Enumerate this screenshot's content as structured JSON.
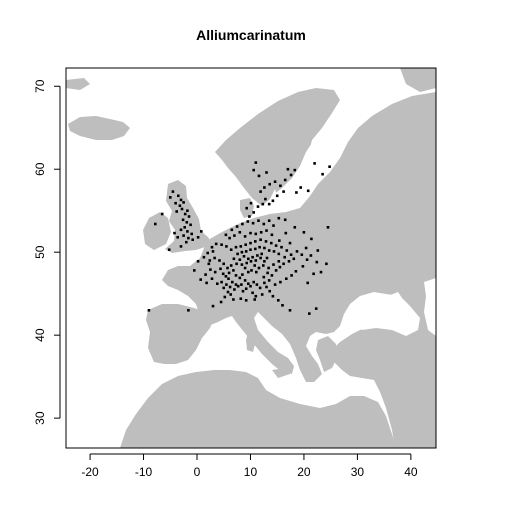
{
  "chart_data": {
    "type": "scatter",
    "title": "Alliumcarinatum",
    "xlabel": "",
    "ylabel": "",
    "xlim": [
      -24.5,
      44.7
    ],
    "ylim": [
      26.4,
      72.2
    ],
    "x_ticks": [
      "-20",
      "-10",
      "0",
      "10",
      "20",
      "30",
      "40"
    ],
    "y_ticks": [
      "30",
      "40",
      "50",
      "60",
      "70"
    ],
    "land_color": "#bebebe",
    "sea_color": "#ffffff",
    "point_color": "#000000",
    "grid": false,
    "series": [
      {
        "points": [
          [
            -3.5,
            56.8
          ],
          [
            -3.0,
            56.3
          ],
          [
            -2.5,
            56.0
          ],
          [
            -3.2,
            55.6
          ],
          [
            -2.8,
            55.2
          ],
          [
            -1.8,
            55.0
          ],
          [
            -2.2,
            54.6
          ],
          [
            -1.5,
            54.3
          ],
          [
            -2.6,
            53.9
          ],
          [
            -1.9,
            53.6
          ],
          [
            -1.2,
            53.3
          ],
          [
            -2.3,
            53.0
          ],
          [
            -3.0,
            52.7
          ],
          [
            -1.8,
            52.5
          ],
          [
            -1.0,
            52.2
          ],
          [
            -2.5,
            52.0
          ],
          [
            -1.6,
            51.7
          ],
          [
            -0.8,
            51.5
          ],
          [
            -3.6,
            51.8
          ],
          [
            -4.2,
            52.3
          ],
          [
            -4.5,
            57.3
          ],
          [
            -5.0,
            56.6
          ],
          [
            -6.5,
            54.6
          ],
          [
            -7.8,
            53.4
          ],
          [
            -4.0,
            55.9
          ],
          [
            -3.8,
            54.9
          ],
          [
            -5.2,
            50.3
          ],
          [
            -3.0,
            50.7
          ],
          [
            -2.0,
            51.2
          ],
          [
            0.2,
            51.8
          ],
          [
            0.8,
            52.5
          ],
          [
            -1.6,
            43.0
          ],
          [
            -9.0,
            43.0
          ],
          [
            3.0,
            43.5
          ],
          [
            4.5,
            44.0
          ],
          [
            5.2,
            44.6
          ],
          [
            5.8,
            45.2
          ],
          [
            6.2,
            45.8
          ],
          [
            5.5,
            46.1
          ],
          [
            6.6,
            46.4
          ],
          [
            5.9,
            46.8
          ],
          [
            7.0,
            45.5
          ],
          [
            6.3,
            44.9
          ],
          [
            5.0,
            45.7
          ],
          [
            4.6,
            46.4
          ],
          [
            6.8,
            44.3
          ],
          [
            7.3,
            46.1
          ],
          [
            5.4,
            47.1
          ],
          [
            6.0,
            47.5
          ],
          [
            6.8,
            47.8
          ],
          [
            7.3,
            47.2
          ],
          [
            8.0,
            46.9
          ],
          [
            8.5,
            47.3
          ],
          [
            9.0,
            46.6
          ],
          [
            8.3,
            46.1
          ],
          [
            7.7,
            45.9
          ],
          [
            9.6,
            46.2
          ],
          [
            9.2,
            45.6
          ],
          [
            8.6,
            45.3
          ],
          [
            10.0,
            45.9
          ],
          [
            10.6,
            46.4
          ],
          [
            11.2,
            46.1
          ],
          [
            11.8,
            45.7
          ],
          [
            10.4,
            45.1
          ],
          [
            11.0,
            44.7
          ],
          [
            8.2,
            44.4
          ],
          [
            9.2,
            44.2
          ],
          [
            10.8,
            44.3
          ],
          [
            12.2,
            44.9
          ],
          [
            13.0,
            45.8
          ],
          [
            13.6,
            45.3
          ],
          [
            14.2,
            44.7
          ],
          [
            15.2,
            44.2
          ],
          [
            16.0,
            43.6
          ],
          [
            17.4,
            43.0
          ],
          [
            12.5,
            47.0
          ],
          [
            13.2,
            47.5
          ],
          [
            14.0,
            47.2
          ],
          [
            14.8,
            47.8
          ],
          [
            15.5,
            48.2
          ],
          [
            16.2,
            48.6
          ],
          [
            15.3,
            48.9
          ],
          [
            14.3,
            48.5
          ],
          [
            13.4,
            48.1
          ],
          [
            12.4,
            48.4
          ],
          [
            11.6,
            48.1
          ],
          [
            10.8,
            48.4
          ],
          [
            10.2,
            47.8
          ],
          [
            11.1,
            47.6
          ],
          [
            9.6,
            47.6
          ],
          [
            9.0,
            48.1
          ],
          [
            8.4,
            48.5
          ],
          [
            9.3,
            48.7
          ],
          [
            10.1,
            48.9
          ],
          [
            11.0,
            49.0
          ],
          [
            11.9,
            49.3
          ],
          [
            12.6,
            48.9
          ],
          [
            13.1,
            49.3
          ],
          [
            12.1,
            49.8
          ],
          [
            11.3,
            49.6
          ],
          [
            10.4,
            49.4
          ],
          [
            9.6,
            49.2
          ],
          [
            8.8,
            49.5
          ],
          [
            8.0,
            49.1
          ],
          [
            7.4,
            48.6
          ],
          [
            6.9,
            49.2
          ],
          [
            7.6,
            49.8
          ],
          [
            8.4,
            50.0
          ],
          [
            9.2,
            50.1
          ],
          [
            10.0,
            50.3
          ],
          [
            10.9,
            50.4
          ],
          [
            11.7,
            50.6
          ],
          [
            12.6,
            50.5
          ],
          [
            13.5,
            50.2
          ],
          [
            14.4,
            50.1
          ],
          [
            15.3,
            49.8
          ],
          [
            16.4,
            49.4
          ],
          [
            17.2,
            48.9
          ],
          [
            18.1,
            49.2
          ],
          [
            17.6,
            49.7
          ],
          [
            16.8,
            50.2
          ],
          [
            15.8,
            50.6
          ],
          [
            14.8,
            50.8
          ],
          [
            13.9,
            51.1
          ],
          [
            12.9,
            51.3
          ],
          [
            11.9,
            51.5
          ],
          [
            10.9,
            51.3
          ],
          [
            10.0,
            51.1
          ],
          [
            9.1,
            50.9
          ],
          [
            8.2,
            50.7
          ],
          [
            7.3,
            50.6
          ],
          [
            6.4,
            50.3
          ],
          [
            5.5,
            50.7
          ],
          [
            4.6,
            50.9
          ],
          [
            3.6,
            51.0
          ],
          [
            2.8,
            50.6
          ],
          [
            2.0,
            49.9
          ],
          [
            1.3,
            49.4
          ],
          [
            2.4,
            49.0
          ],
          [
            3.3,
            49.3
          ],
          [
            4.2,
            49.0
          ],
          [
            5.0,
            48.6
          ],
          [
            4.4,
            48.0
          ],
          [
            3.4,
            47.6
          ],
          [
            2.5,
            47.9
          ],
          [
            1.6,
            47.3
          ],
          [
            0.7,
            46.7
          ],
          [
            1.8,
            46.3
          ],
          [
            2.8,
            46.8
          ],
          [
            3.8,
            46.2
          ],
          [
            4.9,
            47.4
          ],
          [
            5.7,
            48.1
          ],
          [
            6.4,
            48.4
          ],
          [
            2.2,
            48.6
          ],
          [
            3.0,
            50.1
          ],
          [
            -0.5,
            47.8
          ],
          [
            0.2,
            48.9
          ],
          [
            9.0,
            51.9
          ],
          [
            10.0,
            52.3
          ],
          [
            11.0,
            52.2
          ],
          [
            12.0,
            52.4
          ],
          [
            13.0,
            52.6
          ],
          [
            14.0,
            52.1
          ],
          [
            8.0,
            52.4
          ],
          [
            7.0,
            52.0
          ],
          [
            6.1,
            51.7
          ],
          [
            5.4,
            52.1
          ],
          [
            6.5,
            52.7
          ],
          [
            7.5,
            53.1
          ],
          [
            8.5,
            53.4
          ],
          [
            9.5,
            53.7
          ],
          [
            10.5,
            53.5
          ],
          [
            11.5,
            53.8
          ],
          [
            12.5,
            53.4
          ],
          [
            13.5,
            53.8
          ],
          [
            14.3,
            53.2
          ],
          [
            9.8,
            54.3
          ],
          [
            10.6,
            54.8
          ],
          [
            9.3,
            55.3
          ],
          [
            10.1,
            55.9
          ],
          [
            11.4,
            55.5
          ],
          [
            12.3,
            55.8
          ],
          [
            12.8,
            56.4
          ],
          [
            13.5,
            55.8
          ],
          [
            14.2,
            56.2
          ],
          [
            15.0,
            56.8
          ],
          [
            16.2,
            57.3
          ],
          [
            15.6,
            58.0
          ],
          [
            14.6,
            58.5
          ],
          [
            13.6,
            58.2
          ],
          [
            12.6,
            57.8
          ],
          [
            11.9,
            57.3
          ],
          [
            16.5,
            58.7
          ],
          [
            17.6,
            59.3
          ],
          [
            18.3,
            59.9
          ],
          [
            17.0,
            60.0
          ],
          [
            13.0,
            59.6
          ],
          [
            11.6,
            59.2
          ],
          [
            10.6,
            59.9
          ],
          [
            19.4,
            57.8
          ],
          [
            18.6,
            57.2
          ],
          [
            20.8,
            57.4
          ],
          [
            23.5,
            59.4
          ],
          [
            24.8,
            60.3
          ],
          [
            22.0,
            60.7
          ],
          [
            11.0,
            60.8
          ],
          [
            15.4,
            51.4
          ],
          [
            16.6,
            52.3
          ],
          [
            17.4,
            51.1
          ],
          [
            18.7,
            50.1
          ],
          [
            19.6,
            49.7
          ],
          [
            20.6,
            49.1
          ],
          [
            21.3,
            49.6
          ],
          [
            22.4,
            48.8
          ],
          [
            19.8,
            48.3
          ],
          [
            18.5,
            47.7
          ],
          [
            17.7,
            47.2
          ],
          [
            16.7,
            46.8
          ],
          [
            15.6,
            46.4
          ],
          [
            14.6,
            46.1
          ],
          [
            13.5,
            46.6
          ],
          [
            12.6,
            46.3
          ],
          [
            24.5,
            53.0
          ],
          [
            22.6,
            50.2
          ],
          [
            20.4,
            50.5
          ],
          [
            21.4,
            51.6
          ],
          [
            20.0,
            52.4
          ],
          [
            18.3,
            53.0
          ],
          [
            16.5,
            53.9
          ],
          [
            15.3,
            54.1
          ],
          [
            23.2,
            47.6
          ],
          [
            24.2,
            48.6
          ],
          [
            21.8,
            47.4
          ],
          [
            20.7,
            46.3
          ],
          [
            22.3,
            43.2
          ],
          [
            21.0,
            42.6
          ]
        ]
      }
    ]
  }
}
